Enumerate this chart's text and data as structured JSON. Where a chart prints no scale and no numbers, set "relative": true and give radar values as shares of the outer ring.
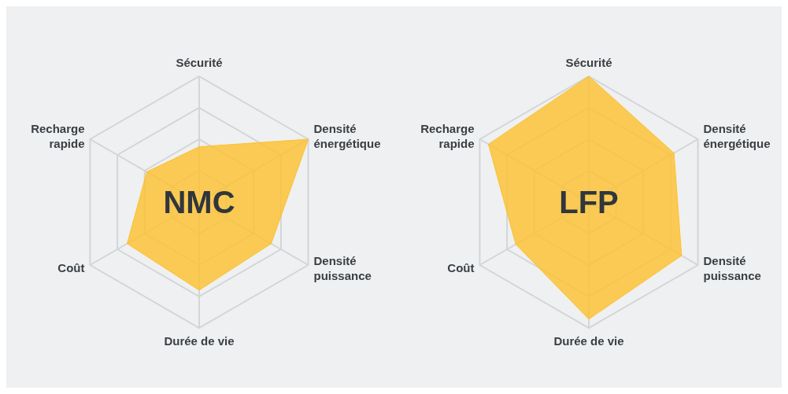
{
  "chart_data": [
    {
      "type": "radar",
      "title": "NMC",
      "categories": [
        "Sécurité",
        "Densité énergétique",
        "Densité puissance",
        "Durée de vie",
        "Coût",
        "Recharge rapide"
      ],
      "relative": true,
      "series": [
        {
          "color": "#fcc12d",
          "values": [
            0.44,
            1.0,
            0.66,
            0.7,
            0.66,
            0.48
          ]
        }
      ]
    },
    {
      "type": "radar",
      "title": "LFP",
      "categories": [
        "Sécurité",
        "Densité énergétique",
        "Densité puissance",
        "Durée de vie",
        "Coût",
        "Recharge rapide"
      ],
      "relative": true,
      "series": [
        {
          "color": "#fcc12d",
          "values": [
            1.0,
            0.78,
            0.85,
            0.93,
            0.67,
            0.92
          ]
        }
      ]
    }
  ]
}
